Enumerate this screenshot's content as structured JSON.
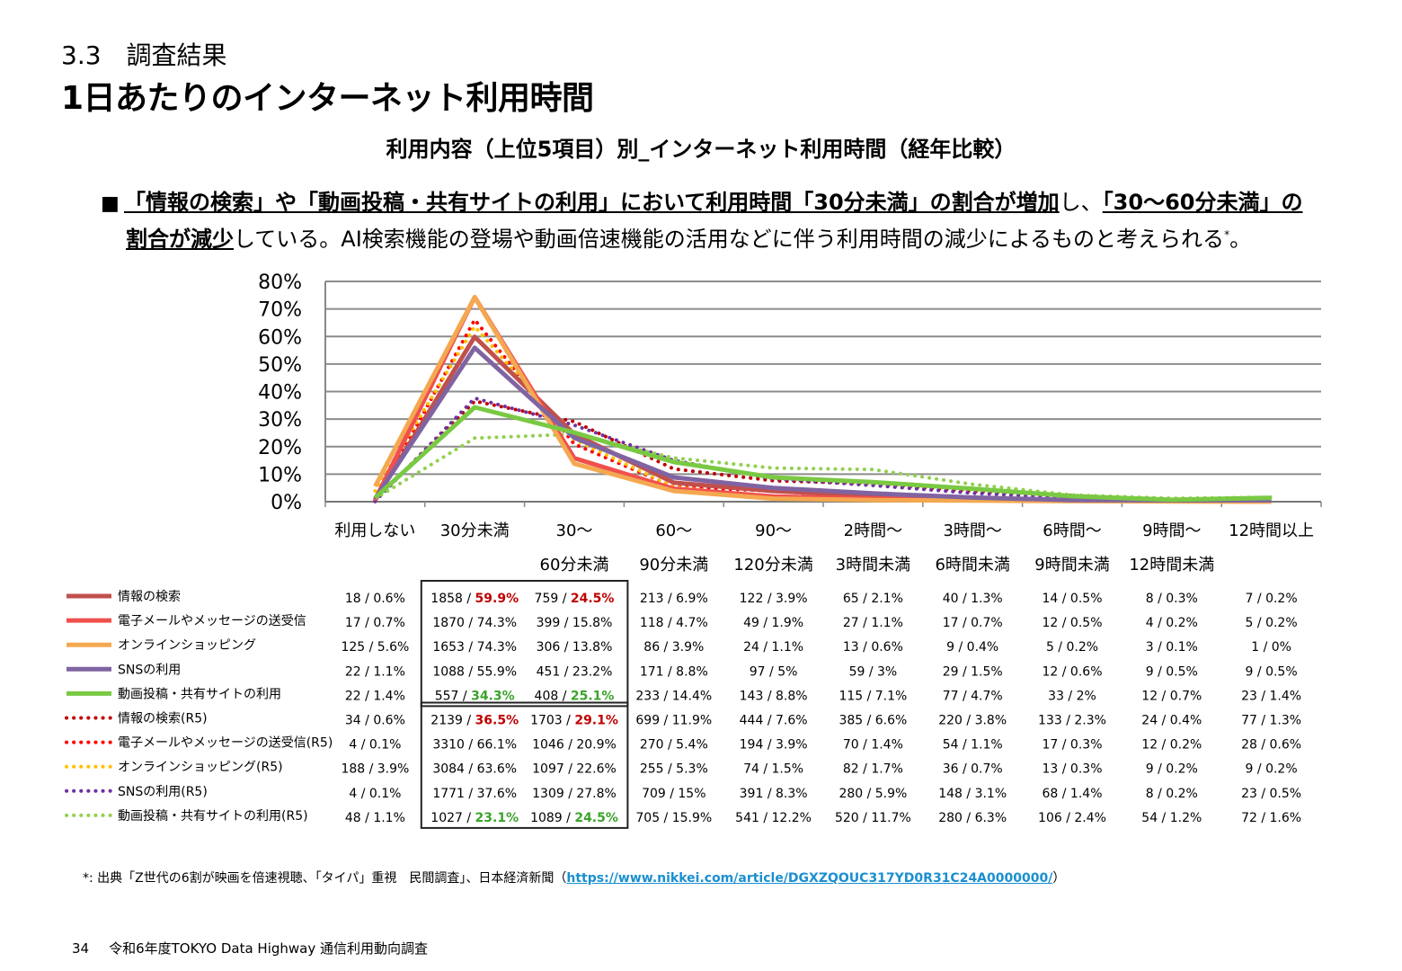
{
  "section": "3.3　調査結果",
  "title": "1日あたりのインターネット利用時間",
  "subtitle": "利用内容（上位5項目）別_インターネット利用時間（経年比較）",
  "summary": {
    "bullet": "■",
    "p1": "「情報の検索」や「動画投稿・共有サイトの利用」において利用時間「30分未満」の割合が増加",
    "p2": "し、",
    "p3": "「30～60分未満」の",
    "p4": "割合が減少",
    "p5": "している。AI検索機能の登場や動画倍速機能の活用などに伴う利用時間の減少によるものと考えられる",
    "sup": "*",
    "p6": "。"
  },
  "chart_data": {
    "type": "line",
    "ylim": [
      0,
      80
    ],
    "yticks": [
      "0%",
      "10%",
      "20%",
      "30%",
      "40%",
      "50%",
      "60%",
      "70%",
      "80%"
    ],
    "categories": [
      [
        "利用しない",
        ""
      ],
      [
        "30分未満",
        ""
      ],
      [
        "30～",
        "60分未満"
      ],
      [
        "60～",
        "90分未満"
      ],
      [
        "90～",
        "120分未満"
      ],
      [
        "2時間～",
        "3時間未満"
      ],
      [
        "3時間～",
        "6時間未満"
      ],
      [
        "6時間～",
        "9時間未満"
      ],
      [
        "9時間～",
        "12時間未満"
      ],
      [
        "12時間以上",
        ""
      ]
    ],
    "series": [
      {
        "name": "情報の検索",
        "color": "#C0504D",
        "dash": false,
        "values": [
          0.6,
          59.9,
          24.5,
          6.9,
          3.9,
          2.1,
          1.3,
          0.5,
          0.3,
          0.2
        ],
        "cells": [
          [
            "18 / 0.6%"
          ],
          [
            "1858 / ",
            "59.9%"
          ],
          [
            "759 / ",
            "24.5%"
          ],
          [
            "213 / 6.9%"
          ],
          [
            "122 / 3.9%"
          ],
          [
            "65 / 2.1%"
          ],
          [
            "40 / 1.3%"
          ],
          [
            "14 / 0.5%"
          ],
          [
            "8 / 0.3%"
          ],
          [
            "7 / 0.2%"
          ]
        ]
      },
      {
        "name": "電子メールやメッセージの送受信",
        "color": "#F0504D",
        "dash": false,
        "values": [
          0.7,
          74.3,
          15.8,
          4.7,
          1.9,
          1.1,
          0.7,
          0.5,
          0.2,
          0.2
        ],
        "cells": [
          [
            "17 / 0.7%"
          ],
          [
            "1870 / 74.3%"
          ],
          [
            "399 / 15.8%"
          ],
          [
            "118 / 4.7%"
          ],
          [
            "49 / 1.9%"
          ],
          [
            "27 / 1.1%"
          ],
          [
            "17 / 0.7%"
          ],
          [
            "12 / 0.5%"
          ],
          [
            "4 / 0.2%"
          ],
          [
            "5 / 0.2%"
          ]
        ]
      },
      {
        "name": "オンラインショッピング",
        "color": "#F4A850",
        "dash": false,
        "values": [
          5.6,
          74.3,
          13.8,
          3.9,
          1.1,
          0.6,
          0.4,
          0.2,
          0.1,
          0
        ],
        "cells": [
          [
            "125 / 5.6%"
          ],
          [
            "1653 / 74.3%"
          ],
          [
            "306 / 13.8%"
          ],
          [
            "86 / 3.9%"
          ],
          [
            "24 / 1.1%"
          ],
          [
            "13 / 0.6%"
          ],
          [
            "9 / 0.4%"
          ],
          [
            "5 / 0.2%"
          ],
          [
            "3 / 0.1%"
          ],
          [
            "1 / 0%"
          ]
        ]
      },
      {
        "name": "SNSの利用",
        "color": "#8064A2",
        "dash": false,
        "values": [
          1.1,
          55.9,
          23.2,
          8.8,
          5,
          3,
          1.5,
          0.6,
          0.5,
          0.5
        ],
        "cells": [
          [
            "22 / 1.1%"
          ],
          [
            "1088 / 55.9%"
          ],
          [
            "451 / 23.2%"
          ],
          [
            "171 / 8.8%"
          ],
          [
            "97 / 5%"
          ],
          [
            "59 / 3%"
          ],
          [
            "29 / 1.5%"
          ],
          [
            "12 / 0.6%"
          ],
          [
            "9 / 0.5%"
          ],
          [
            "9 / 0.5%"
          ]
        ]
      },
      {
        "name": "動画投稿・共有サイトの利用",
        "color": "#7AC943",
        "dash": false,
        "values": [
          1.4,
          34.3,
          25.1,
          14.4,
          8.8,
          7.1,
          4.7,
          2,
          0.7,
          1.4
        ],
        "cells": [
          [
            "22 / 1.4%"
          ],
          [
            "557 / ",
            "34.3%"
          ],
          [
            "408 / ",
            "25.1%"
          ],
          [
            "233 / 14.4%"
          ],
          [
            "143 / 8.8%"
          ],
          [
            "115 / 7.1%"
          ],
          [
            "77 / 4.7%"
          ],
          [
            "33 / 2%"
          ],
          [
            "12 / 0.7%"
          ],
          [
            "23 / 1.4%"
          ]
        ]
      },
      {
        "name": "情報の検索(R5)",
        "color": "#C00000",
        "dash": true,
        "values": [
          0.6,
          36.5,
          29.1,
          11.9,
          7.6,
          6.6,
          3.8,
          2.3,
          0.4,
          1.3
        ],
        "cells": [
          [
            "34 / 0.6%"
          ],
          [
            "2139 / ",
            "36.5%"
          ],
          [
            "1703 / ",
            "29.1%"
          ],
          [
            "699 / 11.9%"
          ],
          [
            "444 / 7.6%"
          ],
          [
            "385 / 6.6%"
          ],
          [
            "220 / 3.8%"
          ],
          [
            "133 / 2.3%"
          ],
          [
            "24 / 0.4%"
          ],
          [
            "77 / 1.3%"
          ]
        ]
      },
      {
        "name": "電子メールやメッセージの送受信(R5)",
        "color": "#FF0000",
        "dash": true,
        "values": [
          0.1,
          66.1,
          20.9,
          5.4,
          3.9,
          1.4,
          1.1,
          0.3,
          0.2,
          0.6
        ],
        "cells": [
          [
            "4 / 0.1%"
          ],
          [
            "3310 / 66.1%"
          ],
          [
            "1046 / 20.9%"
          ],
          [
            "270 / 5.4%"
          ],
          [
            "194 / 3.9%"
          ],
          [
            "70 / 1.4%"
          ],
          [
            "54 / 1.1%"
          ],
          [
            "17 / 0.3%"
          ],
          [
            "12 / 0.2%"
          ],
          [
            "28 / 0.6%"
          ]
        ]
      },
      {
        "name": "オンラインショッピング(R5)",
        "color": "#FFC000",
        "dash": true,
        "values": [
          3.9,
          63.6,
          22.6,
          5.3,
          1.5,
          1.7,
          0.7,
          0.3,
          0.2,
          0.2
        ],
        "cells": [
          [
            "188 / 3.9%"
          ],
          [
            "3084 / 63.6%"
          ],
          [
            "1097 / 22.6%"
          ],
          [
            "255 / 5.3%"
          ],
          [
            "74 / 1.5%"
          ],
          [
            "82 / 1.7%"
          ],
          [
            "36 / 0.7%"
          ],
          [
            "13 / 0.3%"
          ],
          [
            "9 / 0.2%"
          ],
          [
            "9 / 0.2%"
          ]
        ]
      },
      {
        "name": "SNSの利用(R5)",
        "color": "#7030A0",
        "dash": true,
        "values": [
          0.1,
          37.6,
          27.8,
          15,
          8.3,
          5.9,
          3.1,
          1.4,
          0.2,
          0.5
        ],
        "cells": [
          [
            "4 / 0.1%"
          ],
          [
            "1771 / 37.6%"
          ],
          [
            "1309 / 27.8%"
          ],
          [
            "709 / 15%"
          ],
          [
            "391 / 8.3%"
          ],
          [
            "280 / 5.9%"
          ],
          [
            "148 / 3.1%"
          ],
          [
            "68 / 1.4%"
          ],
          [
            "8 / 0.2%"
          ],
          [
            "23 / 0.5%"
          ]
        ]
      },
      {
        "name": "動画投稿・共有サイトの利用(R5)",
        "color": "#92D050",
        "dash": true,
        "values": [
          1.1,
          23.1,
          24.5,
          15.9,
          12.2,
          11.7,
          6.3,
          2.4,
          1.2,
          1.6
        ],
        "cells": [
          [
            "48 / 1.1%"
          ],
          [
            "1027 / ",
            "23.1%"
          ],
          [
            "1089 / ",
            "24.5%"
          ],
          [
            "705 / 15.9%"
          ],
          [
            "541 / 12.2%"
          ],
          [
            "520 / 11.7%"
          ],
          [
            "280 / 6.3%"
          ],
          [
            "106 / 2.4%"
          ],
          [
            "54 / 1.2%"
          ],
          [
            "72 / 1.6%"
          ]
        ]
      }
    ],
    "highlight_colors": {
      "red": "#C00000",
      "green": "#3AA32A"
    },
    "highlight_cells": [
      [
        0,
        1,
        "red"
      ],
      [
        0,
        2,
        "red"
      ],
      [
        4,
        1,
        "green"
      ],
      [
        4,
        2,
        "green"
      ],
      [
        5,
        1,
        "red"
      ],
      [
        5,
        2,
        "red"
      ],
      [
        9,
        1,
        "green"
      ],
      [
        9,
        2,
        "green"
      ]
    ]
  },
  "footnote": {
    "text": "*: 出典「Z世代の6割が映画を倍速視聴、「タイパ」重視　民間調査」、日本経済新聞（",
    "link": "https://www.nikkei.com/article/DGXZQOUC317YD0R31C24A0000000/",
    "close": "）"
  },
  "footer": {
    "page": "34",
    "text": "令和6年度TOKYO Data Highway 通信利用動向調査"
  }
}
